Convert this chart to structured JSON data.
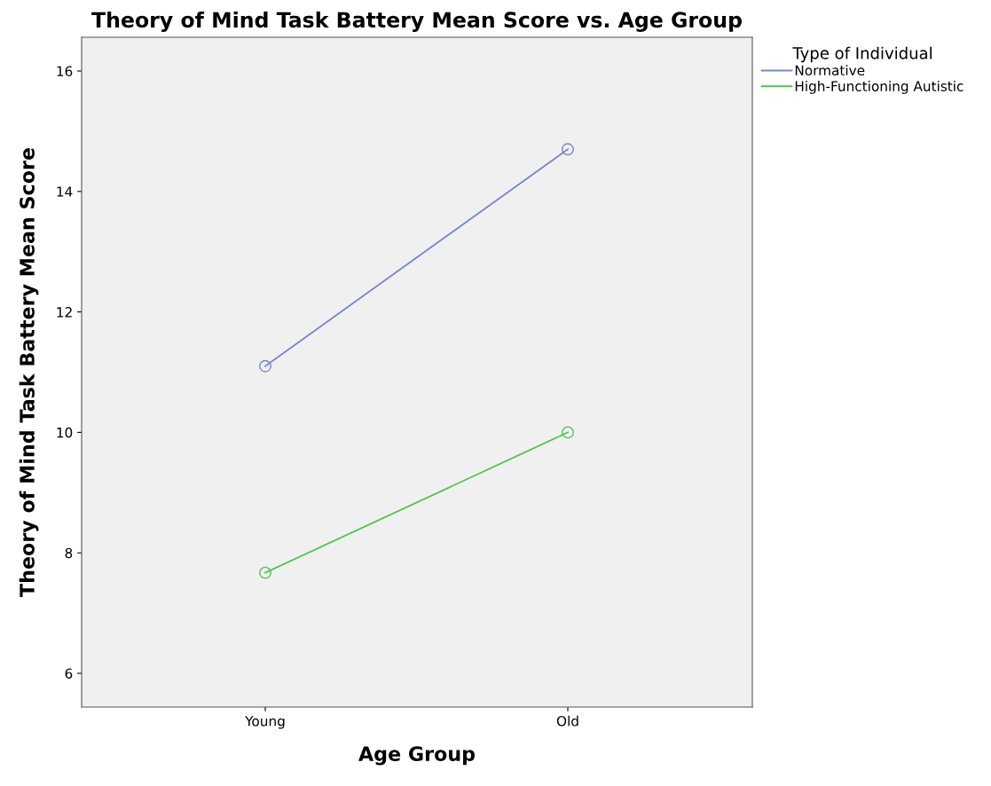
{
  "chart_data": {
    "type": "line",
    "title": "Theory of Mind Task Battery Mean Score vs. Age Group",
    "xlabel": "Age Group",
    "ylabel": "Theory of Mind Task Battery Mean Score",
    "legend_title": "Type of Individual",
    "categories": [
      "Young",
      "Old"
    ],
    "series": [
      {
        "name": "Normative",
        "color": "#7585d0",
        "values": [
          11.1,
          14.7
        ]
      },
      {
        "name": "High-Functioning Autistic",
        "color": "#4fc34f",
        "values": [
          7.67,
          10.0
        ]
      }
    ],
    "ylim": [
      5.44,
      16.56
    ],
    "yticks": [
      6,
      8,
      10,
      12,
      14,
      16
    ],
    "marker": "circle",
    "legend": "right"
  }
}
